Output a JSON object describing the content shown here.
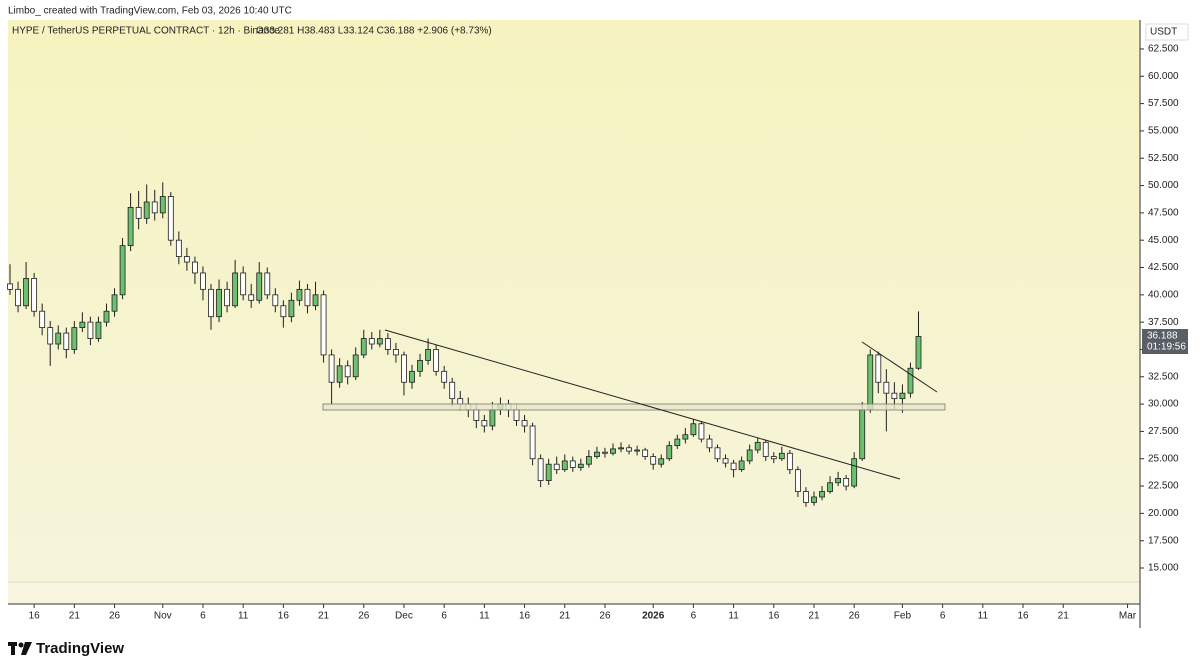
{
  "header": {
    "credit": "Limbo_ created with TradingView.com, Feb 03, 2026 10:40 UTC"
  },
  "footer": {
    "logo": "TradingView"
  },
  "chart_data": {
    "type": "candlestick",
    "title": "HYPE / TetherUS PERPETUAL CONTRACT · 12h · Binance",
    "ohlc_legend": "O33.281 H38.483 L33.124 C36.188 +2.906 (+8.73%)",
    "currency": "USDT",
    "countdown": "01:19:56",
    "up_color": "#6cc070",
    "down_color": "#ffffff",
    "border_color": "#1f1f1f",
    "candles": [
      [
        41,
        42.8,
        40,
        40.5
      ],
      [
        40.5,
        41.2,
        38.4,
        39
      ],
      [
        39,
        43,
        38.7,
        41.5
      ],
      [
        41.5,
        42,
        38,
        38.5
      ],
      [
        38.5,
        39.2,
        36.3,
        37
      ],
      [
        37,
        37.6,
        33.5,
        35.5
      ],
      [
        35.5,
        37.2,
        35,
        36.5
      ],
      [
        36.5,
        37,
        34.2,
        35
      ],
      [
        35,
        37.6,
        34.6,
        37
      ],
      [
        37,
        38.4,
        36.6,
        37.5
      ],
      [
        37.5,
        38,
        35.4,
        36
      ],
      [
        36,
        38,
        35.7,
        37.5
      ],
      [
        37.5,
        39.2,
        37.1,
        38.5
      ],
      [
        38.5,
        40.6,
        38,
        40
      ],
      [
        40,
        45.2,
        39.6,
        44.5
      ],
      [
        44.5,
        49.3,
        44,
        48
      ],
      [
        48,
        49.5,
        46,
        47
      ],
      [
        47,
        50.1,
        46.5,
        48.5
      ],
      [
        48.5,
        49.6,
        46.8,
        47.5
      ],
      [
        47.5,
        50.3,
        47,
        49
      ],
      [
        49,
        49.4,
        44.5,
        45
      ],
      [
        45,
        45.8,
        42.8,
        43.5
      ],
      [
        43.5,
        44.3,
        42.2,
        43
      ],
      [
        43,
        43.5,
        41,
        42
      ],
      [
        42,
        42.6,
        39.5,
        40.5
      ],
      [
        40.5,
        41,
        36.8,
        38
      ],
      [
        38,
        41.4,
        37.5,
        40.5
      ],
      [
        40.5,
        41.2,
        38.4,
        39
      ],
      [
        39,
        43.2,
        38.8,
        42
      ],
      [
        42,
        42.6,
        39.5,
        40
      ],
      [
        40,
        41,
        38.8,
        39.5
      ],
      [
        39.5,
        43,
        39.2,
        42
      ],
      [
        42,
        42.5,
        39.6,
        40
      ],
      [
        40,
        40.6,
        38.4,
        39
      ],
      [
        39,
        39.5,
        37,
        38
      ],
      [
        38,
        40.2,
        37.5,
        39.5
      ],
      [
        39.5,
        41.3,
        39,
        40.5
      ],
      [
        40.5,
        41,
        38.3,
        39
      ],
      [
        39,
        41.2,
        38.6,
        40
      ],
      [
        40,
        40.4,
        33.8,
        34.5
      ],
      [
        34.5,
        35,
        30,
        32
      ],
      [
        32,
        34.2,
        31.5,
        33.5
      ],
      [
        33.5,
        34,
        31.8,
        32.5
      ],
      [
        32.5,
        35.2,
        32.2,
        34.5
      ],
      [
        34.5,
        36.8,
        34.2,
        36
      ],
      [
        36,
        36.6,
        35,
        35.5
      ],
      [
        35.5,
        36.8,
        35.2,
        36
      ],
      [
        36,
        36.5,
        34.5,
        35
      ],
      [
        35,
        35.6,
        33.8,
        34.5
      ],
      [
        34.5,
        34.8,
        30.8,
        32
      ],
      [
        32,
        33.6,
        31.4,
        33
      ],
      [
        33,
        34.6,
        32.5,
        34
      ],
      [
        34,
        36,
        33.6,
        35
      ],
      [
        35,
        35.4,
        32.6,
        33
      ],
      [
        33,
        33.5,
        31.4,
        32
      ],
      [
        32,
        32.4,
        29.8,
        30.5
      ],
      [
        30.5,
        31.2,
        29.4,
        30
      ],
      [
        30,
        30.6,
        28.8,
        29.5
      ],
      [
        29.5,
        30,
        27.8,
        28.5
      ],
      [
        28.5,
        29,
        27.4,
        28
      ],
      [
        28,
        30.2,
        27.6,
        29.5
      ],
      [
        29.5,
        30.6,
        29,
        30
      ],
      [
        30,
        30.4,
        28.8,
        29.5
      ],
      [
        29.5,
        30,
        28,
        28.5
      ],
      [
        28.5,
        29,
        27.4,
        28
      ],
      [
        28,
        28.3,
        24.4,
        25
      ],
      [
        25,
        25.4,
        22.4,
        23
      ],
      [
        23,
        25,
        22.6,
        24.5
      ],
      [
        24.5,
        25.2,
        23.6,
        24
      ],
      [
        24,
        25.4,
        23.8,
        24.8
      ],
      [
        24.8,
        25.2,
        23.8,
        24.2
      ],
      [
        24.2,
        25,
        23.9,
        24.5
      ],
      [
        24.5,
        25.8,
        24.2,
        25.2
      ],
      [
        25.2,
        26.1,
        25,
        25.6
      ],
      [
        25.6,
        26,
        25.1,
        25.5
      ],
      [
        25.5,
        26.4,
        25.3,
        25.9
      ],
      [
        25.9,
        26.5,
        25.6,
        26
      ],
      [
        26,
        26.3,
        25.4,
        25.7
      ],
      [
        25.7,
        26.2,
        25.3,
        25.8
      ],
      [
        25.8,
        26,
        24.9,
        25.2
      ],
      [
        25.2,
        25.5,
        24,
        24.5
      ],
      [
        24.5,
        25.4,
        24.2,
        25
      ],
      [
        25,
        26.6,
        24.8,
        26.2
      ],
      [
        26.2,
        27.2,
        25.9,
        26.8
      ],
      [
        26.8,
        27.8,
        26.4,
        27.2
      ],
      [
        27.2,
        28.6,
        27,
        28.2
      ],
      [
        28.2,
        28.4,
        26.5,
        26.8
      ],
      [
        26.8,
        27.2,
        25.6,
        26
      ],
      [
        26,
        26.3,
        24.7,
        25
      ],
      [
        25,
        25.4,
        24.2,
        24.6
      ],
      [
        24.6,
        24.9,
        23.3,
        24
      ],
      [
        24,
        25.2,
        23.8,
        24.8
      ],
      [
        24.8,
        26.3,
        24.5,
        25.8
      ],
      [
        25.8,
        26.9,
        25.5,
        26.5
      ],
      [
        26.5,
        26.7,
        24.8,
        25.2
      ],
      [
        25.2,
        25.6,
        24.6,
        25
      ],
      [
        25,
        26.1,
        24.8,
        25.5
      ],
      [
        25.5,
        25.8,
        23.6,
        24
      ],
      [
        24,
        24.3,
        21.5,
        22
      ],
      [
        22,
        22.4,
        20.6,
        21
      ],
      [
        21,
        22,
        20.7,
        21.5
      ],
      [
        21.5,
        22.5,
        21.2,
        22
      ],
      [
        22,
        23.4,
        21.8,
        22.8
      ],
      [
        22.8,
        23.8,
        22.5,
        23.2
      ],
      [
        23.2,
        23.5,
        22.1,
        22.5
      ],
      [
        22.5,
        25.6,
        22.3,
        25
      ],
      [
        25,
        30.2,
        24.8,
        29.5
      ],
      [
        29.5,
        35,
        29.2,
        34.5
      ],
      [
        34.5,
        34.8,
        31,
        32
      ],
      [
        32,
        33.2,
        27.5,
        31
      ],
      [
        31,
        32,
        29.5,
        30.5
      ],
      [
        30.5,
        31.8,
        29.2,
        31
      ],
      [
        31,
        33.8,
        30.6,
        33.281
      ],
      [
        33.281,
        38.483,
        33.124,
        36.188
      ]
    ],
    "xlim": [
      -0.25,
      140.55
    ],
    "xticks": [
      {
        "value": 3,
        "label": "16"
      },
      {
        "value": 8,
        "label": "21"
      },
      {
        "value": 13,
        "label": "26"
      },
      {
        "value": 19,
        "label": "Nov"
      },
      {
        "value": 24,
        "label": "6"
      },
      {
        "value": 29,
        "label": "11"
      },
      {
        "value": 34,
        "label": "16"
      },
      {
        "value": 39,
        "label": "21"
      },
      {
        "value": 44,
        "label": "26"
      },
      {
        "value": 49,
        "label": "Dec"
      },
      {
        "value": 54,
        "label": "6"
      },
      {
        "value": 59,
        "label": "11"
      },
      {
        "value": 64,
        "label": "16"
      },
      {
        "value": 69,
        "label": "21"
      },
      {
        "value": 74,
        "label": "26"
      },
      {
        "value": 80,
        "label": "2026"
      },
      {
        "value": 85,
        "label": "6"
      },
      {
        "value": 90,
        "label": "11"
      },
      {
        "value": 95,
        "label": "16"
      },
      {
        "value": 100,
        "label": "21"
      },
      {
        "value": 105,
        "label": "26"
      },
      {
        "value": 111,
        "label": "Feb"
      },
      {
        "value": 116,
        "label": "6"
      },
      {
        "value": 121,
        "label": "11"
      },
      {
        "value": 126,
        "label": "16"
      },
      {
        "value": 131,
        "label": "21"
      },
      {
        "value": 139,
        "label": "Mar"
      }
    ],
    "ylim": [
      13.72,
      65.15
    ],
    "yticks": [
      {
        "value": 15,
        "label": "15.000"
      },
      {
        "value": 17.5,
        "label": "17.500"
      },
      {
        "value": 20,
        "label": "20.000"
      },
      {
        "value": 22.5,
        "label": "22.500"
      },
      {
        "value": 25,
        "label": "25.000"
      },
      {
        "value": 27.5,
        "label": "27.500"
      },
      {
        "value": 30,
        "label": "30.000"
      },
      {
        "value": 32.5,
        "label": "32.500"
      },
      {
        "value": 35,
        "label": "35.000"
      },
      {
        "value": 37.5,
        "label": "37.500"
      },
      {
        "value": 40,
        "label": "40.000"
      },
      {
        "value": 42.5,
        "label": "42.500"
      },
      {
        "value": 45,
        "label": "45.000"
      },
      {
        "value": 47.5,
        "label": "47.500"
      },
      {
        "value": 50,
        "label": "50.000"
      },
      {
        "value": 52.5,
        "label": "52.500"
      },
      {
        "value": 55,
        "label": "55.000"
      },
      {
        "value": 57.5,
        "label": "57.500"
      },
      {
        "value": 60,
        "label": "60.000"
      },
      {
        "value": 62.5,
        "label": "62.500"
      }
    ]
  }
}
